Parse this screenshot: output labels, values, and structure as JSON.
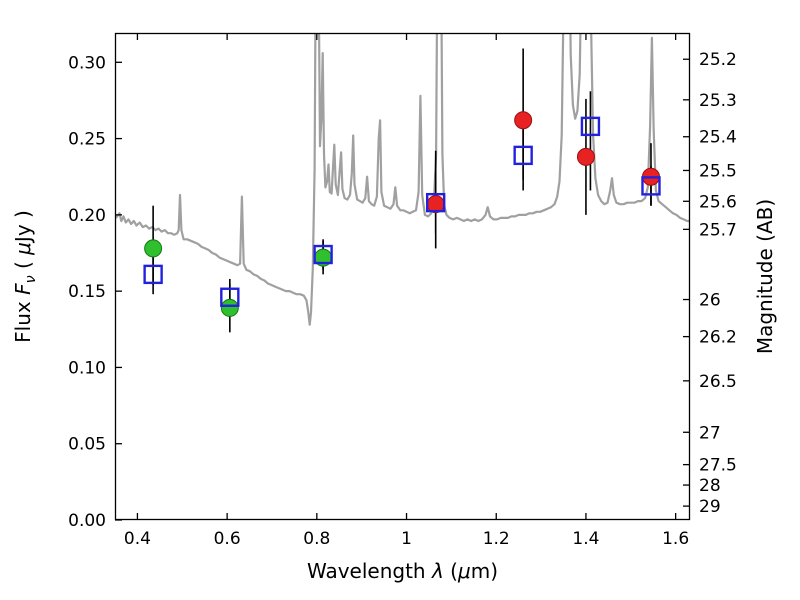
{
  "figure": {
    "background": "#ffffff"
  },
  "chart_data": {
    "type": "line",
    "title": "",
    "xlabel": "Wavelength λ (μm)",
    "ylabel": "Flux Fν ( μJy )",
    "ylabel_right": "Magnitude (AB)",
    "xlabel_parts": [
      {
        "t": "Wavelength  ",
        "s": "n"
      },
      {
        "t": "λ",
        "s": "i"
      },
      {
        "t": " (",
        "s": "n"
      },
      {
        "t": "μ",
        "s": "i"
      },
      {
        "t": "m)",
        "s": "n"
      }
    ],
    "ylabel_parts": [
      {
        "t": "Flux  ",
        "s": "n"
      },
      {
        "t": "F",
        "s": "i"
      },
      {
        "t": "ν",
        "s": "sub"
      },
      {
        "t": "  ( ",
        "s": "n"
      },
      {
        "t": "μ",
        "s": "i"
      },
      {
        "t": "Jy )",
        "s": "n"
      }
    ],
    "ylabel_right_parts": [
      {
        "t": "Magnitude (AB)",
        "s": "n"
      }
    ],
    "xlim": [
      0.35,
      1.632
    ],
    "ylim": [
      0,
      0.3192
    ],
    "grid": false,
    "legend": "none",
    "frame_color": "#000000",
    "errorbar_color": "#000000",
    "x_ticks": [
      {
        "v": 0.4,
        "label": "0.4"
      },
      {
        "v": 0.6,
        "label": "0.6"
      },
      {
        "v": 0.8,
        "label": "0.8"
      },
      {
        "v": 1.0,
        "label": "1"
      },
      {
        "v": 1.2,
        "label": "1.2"
      },
      {
        "v": 1.4,
        "label": "1.4"
      },
      {
        "v": 1.6,
        "label": "1.6"
      }
    ],
    "y_ticks_left": [
      {
        "v": 0.0,
        "label": "0.00"
      },
      {
        "v": 0.05,
        "label": "0.05"
      },
      {
        "v": 0.1,
        "label": "0.10"
      },
      {
        "v": 0.15,
        "label": "0.15"
      },
      {
        "v": 0.2,
        "label": "0.20"
      },
      {
        "v": 0.25,
        "label": "0.25"
      },
      {
        "v": 0.3,
        "label": "0.30"
      }
    ],
    "y_ticks_right": [
      {
        "label": "25.2",
        "flux": 0.302
      },
      {
        "label": "25.3",
        "flux": 0.2754
      },
      {
        "label": "25.4",
        "flux": 0.2512
      },
      {
        "label": "25.5",
        "flux": 0.2291
      },
      {
        "label": "25.6",
        "flux": 0.2089
      },
      {
        "label": "25.7",
        "flux": 0.1905
      },
      {
        "label": "26",
        "flux": 0.1445
      },
      {
        "label": "26.2",
        "flux": 0.1202
      },
      {
        "label": "26.5",
        "flux": 0.0912
      },
      {
        "label": "27",
        "flux": 0.0575
      },
      {
        "label": "27.5",
        "flux": 0.0363
      },
      {
        "label": "28",
        "flux": 0.0229
      },
      {
        "label": "29",
        "flux": 0.0091
      }
    ],
    "series": [
      {
        "name": "model-spectrum",
        "kind": "line",
        "color": "#a0a0a0",
        "width": 2.2,
        "points": [
          [
            0.352,
            0.198
          ],
          [
            0.36,
            0.201
          ],
          [
            0.364,
            0.196
          ],
          [
            0.369,
            0.199
          ],
          [
            0.374,
            0.195
          ],
          [
            0.38,
            0.197
          ],
          [
            0.386,
            0.194
          ],
          [
            0.392,
            0.196
          ],
          [
            0.398,
            0.193
          ],
          [
            0.405,
            0.195
          ],
          [
            0.412,
            0.192
          ],
          [
            0.419,
            0.193
          ],
          [
            0.426,
            0.191
          ],
          [
            0.433,
            0.192
          ],
          [
            0.44,
            0.19
          ],
          [
            0.447,
            0.191
          ],
          [
            0.454,
            0.189
          ],
          [
            0.461,
            0.19
          ],
          [
            0.468,
            0.188
          ],
          [
            0.475,
            0.188
          ],
          [
            0.482,
            0.187
          ],
          [
            0.489,
            0.188
          ],
          [
            0.492,
            0.19
          ],
          [
            0.495,
            0.213
          ],
          [
            0.498,
            0.19
          ],
          [
            0.503,
            0.184
          ],
          [
            0.511,
            0.184
          ],
          [
            0.519,
            0.183
          ],
          [
            0.527,
            0.182
          ],
          [
            0.535,
            0.181
          ],
          [
            0.543,
            0.179
          ],
          [
            0.551,
            0.178
          ],
          [
            0.559,
            0.177
          ],
          [
            0.567,
            0.175
          ],
          [
            0.575,
            0.174
          ],
          [
            0.583,
            0.172
          ],
          [
            0.591,
            0.171
          ],
          [
            0.599,
            0.17
          ],
          [
            0.607,
            0.169
          ],
          [
            0.615,
            0.168
          ],
          [
            0.623,
            0.167
          ],
          [
            0.629,
            0.168
          ],
          [
            0.633,
            0.212
          ],
          [
            0.637,
            0.168
          ],
          [
            0.643,
            0.164
          ],
          [
            0.651,
            0.163
          ],
          [
            0.659,
            0.161
          ],
          [
            0.667,
            0.16
          ],
          [
            0.675,
            0.158
          ],
          [
            0.683,
            0.157
          ],
          [
            0.691,
            0.155
          ],
          [
            0.699,
            0.154
          ],
          [
            0.707,
            0.153
          ],
          [
            0.715,
            0.152
          ],
          [
            0.723,
            0.151
          ],
          [
            0.731,
            0.15
          ],
          [
            0.739,
            0.15
          ],
          [
            0.747,
            0.149
          ],
          [
            0.755,
            0.148
          ],
          [
            0.763,
            0.148
          ],
          [
            0.771,
            0.147
          ],
          [
            0.777,
            0.144
          ],
          [
            0.781,
            0.136
          ],
          [
            0.784,
            0.128
          ],
          [
            0.787,
            0.136
          ],
          [
            0.791,
            0.165
          ],
          [
            0.795,
            0.23
          ],
          [
            0.798,
            0.38
          ],
          [
            0.801,
            0.56
          ],
          [
            0.804,
            0.36
          ],
          [
            0.807,
            0.245
          ],
          [
            0.81,
            0.262
          ],
          [
            0.813,
            0.306
          ],
          [
            0.816,
            0.24
          ],
          [
            0.819,
            0.218
          ],
          [
            0.823,
            0.222
          ],
          [
            0.826,
            0.233
          ],
          [
            0.829,
            0.215
          ],
          [
            0.833,
            0.214
          ],
          [
            0.836,
            0.231
          ],
          [
            0.839,
            0.246
          ],
          [
            0.842,
            0.22
          ],
          [
            0.847,
            0.213
          ],
          [
            0.851,
            0.229
          ],
          [
            0.854,
            0.241
          ],
          [
            0.857,
            0.217
          ],
          [
            0.862,
            0.211
          ],
          [
            0.868,
            0.21
          ],
          [
            0.874,
            0.213
          ],
          [
            0.878,
            0.227
          ],
          [
            0.881,
            0.252
          ],
          [
            0.884,
            0.22
          ],
          [
            0.89,
            0.21
          ],
          [
            0.896,
            0.209
          ],
          [
            0.902,
            0.208
          ],
          [
            0.908,
            0.211
          ],
          [
            0.912,
            0.225
          ],
          [
            0.916,
            0.209
          ],
          [
            0.922,
            0.207
          ],
          [
            0.928,
            0.206
          ],
          [
            0.934,
            0.212
          ],
          [
            0.938,
            0.25
          ],
          [
            0.941,
            0.262
          ],
          [
            0.944,
            0.215
          ],
          [
            0.95,
            0.206
          ],
          [
            0.957,
            0.205
          ],
          [
            0.964,
            0.204
          ],
          [
            0.971,
            0.207
          ],
          [
            0.975,
            0.218
          ],
          [
            0.979,
            0.206
          ],
          [
            0.986,
            0.203
          ],
          [
            0.993,
            0.203
          ],
          [
            1.0,
            0.202
          ],
          [
            1.007,
            0.201
          ],
          [
            1.014,
            0.202
          ],
          [
            1.021,
            0.203
          ],
          [
            1.027,
            0.215
          ],
          [
            1.031,
            0.278
          ],
          [
            1.035,
            0.213
          ],
          [
            1.041,
            0.2
          ],
          [
            1.048,
            0.199
          ],
          [
            1.055,
            0.201
          ],
          [
            1.061,
            0.208
          ],
          [
            1.066,
            0.24
          ],
          [
            1.07,
            0.42
          ],
          [
            1.073,
            0.62
          ],
          [
            1.076,
            0.42
          ],
          [
            1.08,
            0.24
          ],
          [
            1.084,
            0.206
          ],
          [
            1.089,
            0.2
          ],
          [
            1.096,
            0.198
          ],
          [
            1.104,
            0.197
          ],
          [
            1.112,
            0.198
          ],
          [
            1.12,
            0.197
          ],
          [
            1.128,
            0.196
          ],
          [
            1.136,
            0.197
          ],
          [
            1.144,
            0.196
          ],
          [
            1.152,
            0.197
          ],
          [
            1.16,
            0.196
          ],
          [
            1.168,
            0.197
          ],
          [
            1.176,
            0.2
          ],
          [
            1.181,
            0.205
          ],
          [
            1.186,
            0.199
          ],
          [
            1.194,
            0.197
          ],
          [
            1.202,
            0.197
          ],
          [
            1.21,
            0.198
          ],
          [
            1.218,
            0.198
          ],
          [
            1.226,
            0.198
          ],
          [
            1.234,
            0.199
          ],
          [
            1.242,
            0.199
          ],
          [
            1.25,
            0.2
          ],
          [
            1.258,
            0.2
          ],
          [
            1.266,
            0.2
          ],
          [
            1.274,
            0.201
          ],
          [
            1.282,
            0.201
          ],
          [
            1.29,
            0.202
          ],
          [
            1.298,
            0.202
          ],
          [
            1.306,
            0.203
          ],
          [
            1.314,
            0.204
          ],
          [
            1.322,
            0.205
          ],
          [
            1.33,
            0.207
          ],
          [
            1.336,
            0.212
          ],
          [
            1.341,
            0.222
          ],
          [
            1.346,
            0.252
          ],
          [
            1.351,
            0.36
          ],
          [
            1.356,
            0.52
          ],
          [
            1.361,
            0.43
          ],
          [
            1.366,
            0.305
          ],
          [
            1.371,
            0.272
          ],
          [
            1.376,
            0.263
          ],
          [
            1.381,
            0.268
          ],
          [
            1.386,
            0.292
          ],
          [
            1.391,
            0.38
          ],
          [
            1.396,
            0.52
          ],
          [
            1.401,
            0.56
          ],
          [
            1.406,
            0.47
          ],
          [
            1.411,
            0.33
          ],
          [
            1.416,
            0.252
          ],
          [
            1.421,
            0.224
          ],
          [
            1.427,
            0.213
          ],
          [
            1.434,
            0.209
          ],
          [
            1.441,
            0.207
          ],
          [
            1.448,
            0.208
          ],
          [
            1.454,
            0.216
          ],
          [
            1.458,
            0.224
          ],
          [
            1.462,
            0.213
          ],
          [
            1.468,
            0.208
          ],
          [
            1.476,
            0.207
          ],
          [
            1.484,
            0.207
          ],
          [
            1.492,
            0.208
          ],
          [
            1.5,
            0.208
          ],
          [
            1.508,
            0.208
          ],
          [
            1.516,
            0.209
          ],
          [
            1.524,
            0.209
          ],
          [
            1.532,
            0.211
          ],
          [
            1.538,
            0.218
          ],
          [
            1.543,
            0.258
          ],
          [
            1.547,
            0.316
          ],
          [
            1.551,
            0.255
          ],
          [
            1.556,
            0.216
          ],
          [
            1.562,
            0.209
          ],
          [
            1.57,
            0.207
          ],
          [
            1.578,
            0.205
          ],
          [
            1.586,
            0.203
          ],
          [
            1.594,
            0.201
          ],
          [
            1.602,
            0.2
          ],
          [
            1.61,
            0.198
          ],
          [
            1.618,
            0.197
          ],
          [
            1.626,
            0.196
          ],
          [
            1.632,
            0.196
          ]
        ]
      },
      {
        "name": "observed-photometry-optical",
        "kind": "scatter",
        "marker": "circle",
        "color": "#2fbf2f",
        "edge": "#117711",
        "size": 17,
        "points": [
          {
            "x": 0.435,
            "y": 0.178,
            "lo": 0.154,
            "hi": 0.206
          },
          {
            "x": 0.606,
            "y": 0.139,
            "lo": 0.123,
            "hi": 0.155
          },
          {
            "x": 0.814,
            "y": 0.172,
            "lo": 0.161,
            "hi": 0.183
          }
        ]
      },
      {
        "name": "observed-photometry-infrared",
        "kind": "scatter",
        "marker": "circle",
        "color": "#e82222",
        "edge": "#991111",
        "size": 17,
        "points": [
          {
            "x": 1.065,
            "y": 0.207,
            "lo": 0.178,
            "hi": 0.242
          },
          {
            "x": 1.26,
            "y": 0.262,
            "lo": 0.223,
            "hi": 0.309
          },
          {
            "x": 1.4,
            "y": 0.238,
            "lo": 0.2,
            "hi": 0.276
          },
          {
            "x": 1.545,
            "y": 0.225,
            "lo": 0.206,
            "hi": 0.247
          }
        ]
      },
      {
        "name": "model-photometry",
        "kind": "scatter",
        "marker": "square",
        "color": "#2222dd",
        "edge": "#2222dd",
        "size": 17,
        "points": [
          {
            "x": 0.435,
            "y": 0.161,
            "lo": 0.148,
            "hi": 0.174
          },
          {
            "x": 0.606,
            "y": 0.146,
            "lo": 0.134,
            "hi": 0.158
          },
          {
            "x": 0.814,
            "y": 0.174,
            "lo": 0.164,
            "hi": 0.184
          },
          {
            "x": 1.065,
            "y": 0.208,
            "lo": 0.188,
            "hi": 0.228
          },
          {
            "x": 1.26,
            "y": 0.239,
            "lo": 0.216,
            "hi": 0.262
          },
          {
            "x": 1.41,
            "y": 0.258,
            "lo": 0.216,
            "hi": 0.281
          },
          {
            "x": 1.545,
            "y": 0.219,
            "lo": 0.206,
            "hi": 0.232
          }
        ]
      }
    ]
  }
}
